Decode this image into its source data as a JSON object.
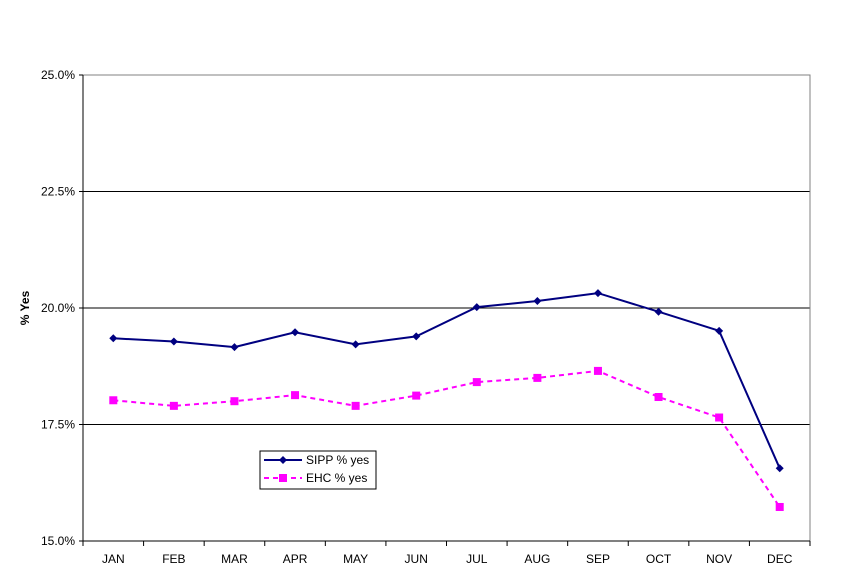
{
  "chart_data": {
    "type": "line",
    "title": "",
    "xlabel": "",
    "ylabel": "% Yes",
    "categories": [
      "JAN",
      "FEB",
      "MAR",
      "APR",
      "MAY",
      "JUN",
      "JUL",
      "AUG",
      "SEP",
      "OCT",
      "NOV",
      "DEC"
    ],
    "y_ticks": [
      "15.0%",
      "17.5%",
      "20.0%",
      "22.5%",
      "25.0%"
    ],
    "ylim": [
      15.0,
      25.0
    ],
    "grid": "horizontal",
    "legend_position": "lower-left",
    "series": [
      {
        "name": "SIPP % yes",
        "color": "#000080",
        "style": "solid",
        "marker": "diamond",
        "values": [
          19.35,
          19.28,
          19.16,
          19.48,
          19.22,
          19.39,
          20.02,
          20.15,
          20.32,
          19.92,
          19.51,
          16.56
        ]
      },
      {
        "name": "EHC % yes",
        "color": "#FF00FF",
        "style": "dashed",
        "marker": "square",
        "values": [
          18.02,
          17.9,
          18.0,
          18.13,
          17.9,
          18.12,
          18.41,
          18.5,
          18.65,
          18.09,
          17.65,
          15.73
        ]
      }
    ]
  }
}
